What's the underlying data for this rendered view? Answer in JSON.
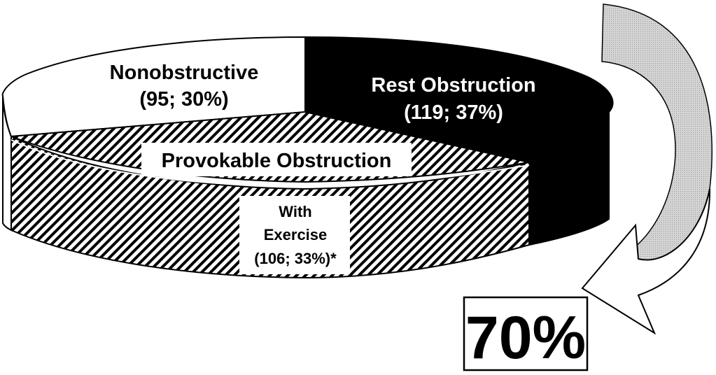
{
  "chart_data": {
    "type": "pie",
    "title": "",
    "total_callout": "70%",
    "slices": [
      {
        "name": "Rest Obstruction",
        "count_label": "(119; 37%)",
        "count": 119,
        "percent": 37,
        "fill": "#000000",
        "text_color": "#ffffff"
      },
      {
        "name": "Provokable Obstruction",
        "sublabel_line1": "With",
        "sublabel_line2": "Exercise",
        "count_label": "(106; 33%)*",
        "count": 106,
        "percent": 33,
        "fill": "hatch",
        "text_color": "#000000"
      },
      {
        "name": "Nonobstructive",
        "count_label": "(95; 30%)",
        "count": 95,
        "percent": 30,
        "fill": "#ffffff",
        "text_color": "#000000"
      }
    ]
  }
}
